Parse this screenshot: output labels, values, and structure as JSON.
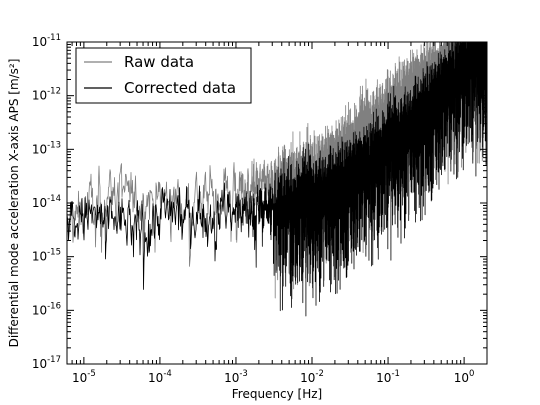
{
  "chart_data": {
    "type": "line",
    "title": "",
    "xlabel": "Frequency [Hz]",
    "ylabel": "Differential mode acceleration X-axis APS [m/s²]",
    "xscale": "log",
    "yscale": "log",
    "xlim": [
      6e-06,
      2.0
    ],
    "ylim": [
      1e-17,
      1e-11
    ],
    "grid": false,
    "legend_position": "top-left",
    "x_ticks": [
      {
        "base": "10",
        "exp": "-5"
      },
      {
        "base": "10",
        "exp": "-4"
      },
      {
        "base": "10",
        "exp": "-3"
      },
      {
        "base": "10",
        "exp": "-2"
      },
      {
        "base": "10",
        "exp": "-1"
      },
      {
        "base": "10",
        "exp": "0"
      }
    ],
    "y_ticks": [
      {
        "base": "10",
        "exp": "-17"
      },
      {
        "base": "10",
        "exp": "-16"
      },
      {
        "base": "10",
        "exp": "-15"
      },
      {
        "base": "10",
        "exp": "-14"
      },
      {
        "base": "10",
        "exp": "-13"
      },
      {
        "base": "10",
        "exp": "-12"
      },
      {
        "base": "10",
        "exp": "-11"
      }
    ],
    "series": [
      {
        "name": "Raw data",
        "color": "#808080",
        "x": [
          6e-06,
          1e-05,
          2e-05,
          3e-05,
          5e-05,
          7e-05,
          0.0001,
          0.0002,
          0.0005,
          0.001,
          0.002,
          0.005,
          0.01,
          0.02,
          0.05,
          0.1,
          0.2,
          0.5,
          1.0,
          2.0
        ],
        "y": [
          3e-15,
          8e-15,
          1.5e-14,
          2e-14,
          1e-14,
          1.5e-14,
          1.3e-14,
          1.2e-14,
          1.5e-14,
          2e-14,
          2e-14,
          2.5e-14,
          3e-14,
          6e-14,
          2e-13,
          5e-13,
          1.2e-12,
          3e-12,
          5e-12,
          6e-12
        ]
      },
      {
        "name": "Corrected data",
        "color": "#000000",
        "x": [
          6e-06,
          1e-05,
          2e-05,
          3e-05,
          5e-05,
          7e-05,
          0.0001,
          0.0002,
          0.0005,
          0.001,
          0.002,
          0.005,
          0.01,
          0.02,
          0.05,
          0.1,
          0.2,
          0.5,
          1.0,
          2.0
        ],
        "y": [
          4e-15,
          6e-15,
          4.5e-15,
          5e-15,
          4e-15,
          5e-15,
          7e-15,
          6e-15,
          8e-15,
          8e-15,
          8e-15,
          1e-14,
          1.3e-14,
          2e-14,
          5e-14,
          1.2e-13,
          3e-13,
          1.2e-12,
          4e-12,
          6e-12
        ]
      }
    ]
  }
}
